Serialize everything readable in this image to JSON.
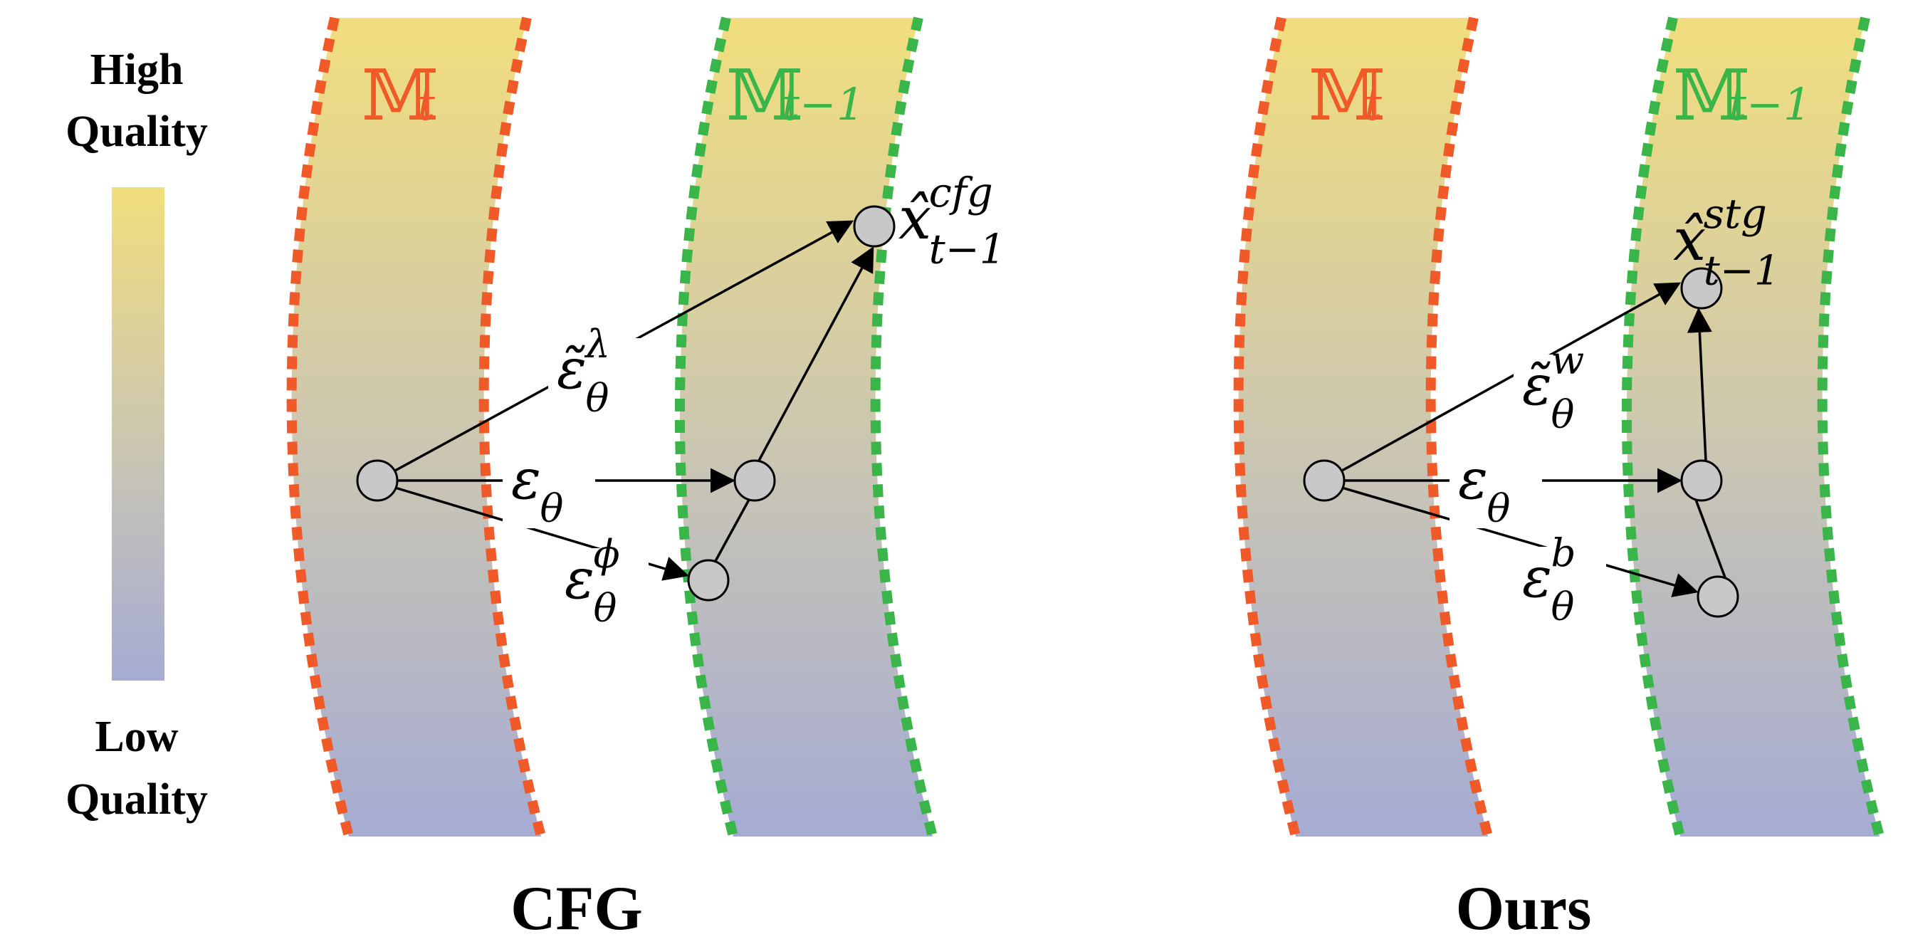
{
  "legend": {
    "top_label_line1": "High",
    "top_label_line2": "Quality",
    "bottom_label_line1": "Low",
    "bottom_label_line2": "Quality"
  },
  "colors": {
    "high_quality": "#f1de7d",
    "low_quality": "#a5abd3",
    "manifold_t": "#f05a28",
    "manifold_t_minus_1": "#39b54a",
    "node_fill": "#c8c8c8",
    "arrow": "#000000"
  },
  "panels": [
    {
      "caption": "CFG",
      "manifold_left": {
        "symbol": "𝕄",
        "subscript": "t"
      },
      "manifold_right": {
        "symbol": "𝕄",
        "subscript": "t−1"
      },
      "result": {
        "symbol": "x̂",
        "superscript": "cfg",
        "subscript": "t−1"
      },
      "eps_guided": {
        "symbol": "ε̃",
        "superscript": "λ",
        "subscript": "θ"
      },
      "eps_main": {
        "symbol": "ε",
        "subscript": "θ"
      },
      "eps_weak": {
        "symbol": "ε",
        "superscript": "ϕ",
        "subscript": "θ"
      }
    },
    {
      "caption": "Ours",
      "manifold_left": {
        "symbol": "𝕄",
        "subscript": "t"
      },
      "manifold_right": {
        "symbol": "𝕄",
        "subscript": "t−1"
      },
      "result": {
        "symbol": "x̂",
        "superscript": "stg",
        "subscript": "t−1"
      },
      "eps_guided": {
        "symbol": "ε̃",
        "superscript": "w",
        "subscript": "θ"
      },
      "eps_main": {
        "symbol": "ε",
        "subscript": "θ"
      },
      "eps_weak": {
        "symbol": "ε",
        "superscript": "b",
        "subscript": "θ"
      }
    }
  ]
}
